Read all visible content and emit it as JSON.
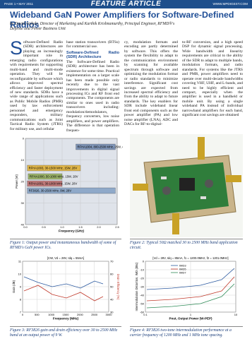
{
  "header": {
    "page": "PAGE 1 • MAY 2011",
    "section": "FEATURE ARTICLE",
    "site": "WWW.MPDIGEST.COM"
  },
  "article": {
    "title": "Wideband GaN Power Amplifiers for Software-Defined Radios",
    "byline": "by David Aichele, Director of Marketing and Karthik Krishnamurthy, Principal Engineer, RFMD®'s Defense and Power Business Unit",
    "columns": [
      {
        "drop_cap": "S",
        "text": "oftware-Defined Radio (SDR) architectures are playing an increasingly important role in emerging radio configurations with requirements for supporting multi-band and multi-mode operation. They will be reconfigurable by software which allows improved spectral efficiency and faster deployment of new standards. SDRs have a wide range of applications such as Public Mobile Radios (PMR) used by law enforcement personnel and emergency responders, military communications such as Joint Tactical Radio System (JTRS) for military use, and cellular"
      },
      {
        "lead": "base station transceivers (BTSs) for commercial use.",
        "heading": "Software-Defined Radio (SDR) Architecture",
        "text": "The Software-Defined Radio (SDR) architecture has been in existence for some time. Practical implementation on a larger scale has been made possible only recently due to the vast improvements in digital signal processing ICs and RF front end components. The components are similar to ones used in radio transceivers including: modulation/demodulators, frequency converters, low noise amplifiers, and power amplifiers. The difference is that operation frequen-"
      },
      {
        "text": "cy, modulation formats and encoding are partly determined by software. This offers the system the flexibility to adapt to the communication environment by scanning for available spectrum through software and optimizing the modulation format or radio standards to minimize interference. Significant cost savings are expected from increased spectral efficiency and from the ability to adapt to future standards. The key enablers for SDR include wideband linear front end components such as the power amplifier (PA) and low noise amplifier (LNA), ADC and DACs for RF-to-digital-"
      },
      {
        "text": "to-RF conversion, and a high speed DSP for dynamic signal processing. Wide bandwidth and linearity requirements are critical to the ability of the SDR to adapt to multiple bands, modulation formats, and radio standards. For systems like the JTRS and PMR, power amplifiers need to operate over multi-decade bandwidths covering VHF, UHF, and L-bands, and need to be highly efficient and compact, especially when the amplifier is used in a handheld or mobile unit. By using a single wideband PA instead of individual narrowband amplifiers for each band, significant cost savings are obtained"
      }
    ]
  },
  "figures": [
    {
      "caption": "Figure 1: Output power and instantaneous bandwidth of some of RFMD's GaN power ICs.",
      "y_label": "Power (W)",
      "x_label": "Frequency (GHz)",
      "yticks": [
        "0",
        "10",
        "20",
        "30",
        "40"
      ],
      "xticks": [
        "0.0",
        "0.5",
        "1.0",
        "1.5",
        "2.0",
        "2.5"
      ],
      "bars": [
        "RFHA1004, 800-2500 MHz, 25W, 48V",
        "RFHA1003, 30-1500 MHz, 15W, 28V",
        "RFHA1000, 50-1000 MHz, 15W, 28V",
        "RFHA1001, 30-1000 MHz, 15W, 28V",
        "RF3826, 30-2500 MHz, 9W, 28V"
      ]
    },
    {
      "caption": "Figure 2: Typical 50Ω matched 30 to 2500 MHz band application circuit."
    },
    {
      "caption": "Figure 3: RF3826 gain and drain efficiency over 30 to 2500 MHz band at an output power of 9 W.",
      "title": "[CW, Vd = 28V, Idq = 55mA]",
      "y_label": "Gain (dB)",
      "y2_label": "Drain Efficiency (%)",
      "x_label": "Frequency (MHz)",
      "yticks": [
        "11",
        "10",
        "9",
        "8",
        "7"
      ],
      "y2ticks": [
        "70",
        "60",
        "50",
        "40",
        "30"
      ],
      "xticks": [
        "0",
        "500",
        "1000",
        "1500",
        "2000",
        "2500",
        "3000"
      ]
    },
    {
      "caption": "Figure 4: RF3826 two-tone intermodulation performance at a carrier frequency of 1200 MHz and 1 MHz tone spacing.",
      "title": "[Vd = 28V, Idq = 85mA, f1 = 1200.0MHz, f2 = 1201.0MHz]",
      "y_label": "Intermodulation Distortion, IMD (dBc)",
      "x_label": "Pout, Output Power (W-PEP)",
      "yticks": [
        "0",
        "-10",
        "-20",
        "-30",
        "-40",
        "-50",
        "-60"
      ],
      "xticks": [
        "0.1",
        "1",
        "10"
      ],
      "legend": [
        "IMD3",
        "IMD5",
        "IMD7"
      ]
    }
  ]
}
